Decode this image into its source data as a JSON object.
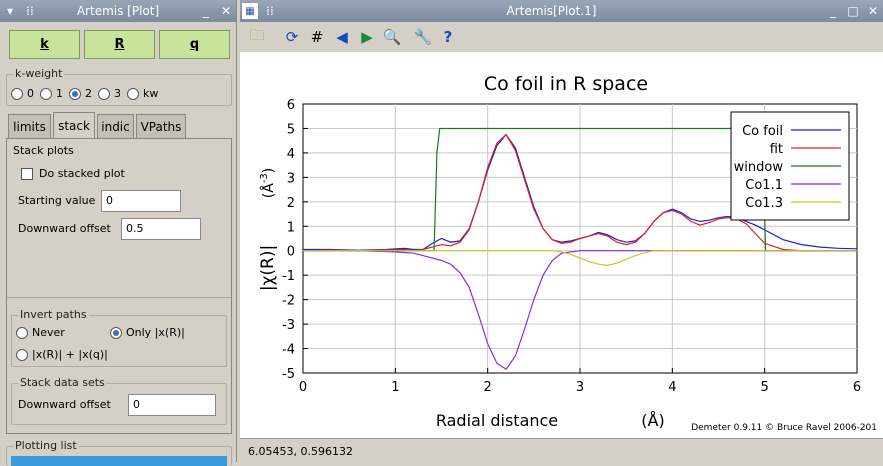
{
  "left_window": {
    "title": "Artemis [Plot]",
    "k_buttons": [
      {
        "label": "k"
      },
      {
        "label": "R"
      },
      {
        "label": "q"
      }
    ],
    "kweight": {
      "label": "k-weight",
      "options": [
        "0",
        "1",
        "2",
        "3",
        "kw"
      ],
      "selected": "2"
    },
    "tabs": [
      "limits",
      "stack",
      "indic",
      "VPaths"
    ],
    "active_tab": "stack",
    "stack_plots": {
      "label": "Stack plots",
      "do_stacked": "Do stacked plot",
      "starting_label": "Starting value",
      "starting_value": "0",
      "downward_label": "Downward offset",
      "downward_value": "0.5"
    },
    "invert_paths": {
      "label": "Invert paths",
      "never": "Never",
      "only": "Only |x(R)|",
      "both": "|x(R)| + |x(q)|"
    },
    "stack_data_sets": {
      "label": "Stack data sets",
      "downward_label": "Downward offset",
      "downward_value": "0"
    },
    "plotting_list": {
      "label": "Plotting list"
    }
  },
  "right_window": {
    "title": "Artemis[Plot.1]",
    "status": "6.05453,  0.596132"
  },
  "chart_data": {
    "type": "line",
    "title": "Co foil in R space",
    "xlabel": "Radial distance",
    "xunit": "(Å)",
    "ylabel": "|χ(R)|",
    "yunit_base": "(Å",
    "yunit_exp": "-3",
    "yunit_close": ")",
    "xlim": [
      0,
      6
    ],
    "ylim": [
      -5,
      6
    ],
    "xticks": [
      "0",
      "1",
      "2",
      "3",
      "4",
      "5",
      "6"
    ],
    "yticks": [
      "-5",
      "-4",
      "-3",
      "-2",
      "-1",
      "0",
      "1",
      "2",
      "3",
      "4",
      "5",
      "6"
    ],
    "credit": "Demeter 0.9.11 © Bruce Ravel 2006-201",
    "legend_position": "top-right",
    "colors": {
      "Co foil": "#1f1fd8",
      "fit": "#e02020",
      "window": "#1a7a1a",
      "Co1.1": "#8a2be2",
      "Co1.3": "#c8c820"
    },
    "series": [
      {
        "name": "Co foil",
        "x": [
          0,
          0.3,
          0.6,
          0.9,
          1.1,
          1.2,
          1.3,
          1.4,
          1.5,
          1.6,
          1.7,
          1.8,
          1.9,
          2.0,
          2.1,
          2.2,
          2.3,
          2.4,
          2.5,
          2.6,
          2.7,
          2.8,
          2.9,
          3.0,
          3.1,
          3.2,
          3.3,
          3.4,
          3.5,
          3.6,
          3.7,
          3.8,
          3.9,
          4.0,
          4.1,
          4.2,
          4.3,
          4.4,
          4.5,
          4.6,
          4.7,
          4.8,
          4.9,
          5.0,
          5.2,
          5.4,
          5.6,
          5.8,
          6.0
        ],
        "y": [
          0.05,
          0.05,
          0.02,
          0.05,
          0.1,
          0.05,
          0.05,
          0.3,
          0.5,
          0.35,
          0.4,
          0.9,
          2.0,
          3.3,
          4.3,
          4.75,
          4.2,
          3.0,
          1.8,
          0.9,
          0.45,
          0.35,
          0.4,
          0.5,
          0.6,
          0.75,
          0.65,
          0.45,
          0.35,
          0.4,
          0.7,
          1.2,
          1.55,
          1.7,
          1.55,
          1.3,
          1.2,
          1.25,
          1.35,
          1.4,
          1.35,
          1.2,
          1.05,
          0.85,
          0.45,
          0.25,
          0.15,
          0.1,
          0.08
        ]
      },
      {
        "name": "fit",
        "x": [
          0,
          0.3,
          0.6,
          0.9,
          1.1,
          1.2,
          1.3,
          1.4,
          1.5,
          1.6,
          1.7,
          1.8,
          1.9,
          2.0,
          2.1,
          2.2,
          2.3,
          2.4,
          2.5,
          2.6,
          2.7,
          2.8,
          2.9,
          3.0,
          3.1,
          3.2,
          3.3,
          3.4,
          3.5,
          3.6,
          3.7,
          3.8,
          3.9,
          4.0,
          4.1,
          4.2,
          4.3,
          4.4,
          4.5,
          4.6,
          4.7,
          4.8,
          4.9,
          5.0,
          5.2,
          5.4,
          5.6,
          5.8,
          6.0
        ],
        "y": [
          0.0,
          0.02,
          0.0,
          0.03,
          0.05,
          0.0,
          0.05,
          0.15,
          0.25,
          0.2,
          0.35,
          0.85,
          2.0,
          3.4,
          4.4,
          4.75,
          4.1,
          2.9,
          1.7,
          0.9,
          0.45,
          0.3,
          0.35,
          0.5,
          0.6,
          0.7,
          0.6,
          0.35,
          0.25,
          0.35,
          0.7,
          1.2,
          1.55,
          1.65,
          1.5,
          1.2,
          1.05,
          1.15,
          1.3,
          1.35,
          1.3,
          1.1,
          0.7,
          0.3,
          0.05,
          0.0,
          0.0,
          0.0,
          0.0
        ]
      },
      {
        "name": "window",
        "x": [
          0,
          1.42,
          1.45,
          1.48,
          4.95,
          4.98,
          5.01,
          6.0
        ],
        "y": [
          0,
          0,
          4.0,
          5,
          5,
          4.0,
          0,
          0
        ]
      },
      {
        "name": "Co1.1",
        "x": [
          0,
          0.6,
          1.0,
          1.2,
          1.3,
          1.4,
          1.5,
          1.6,
          1.7,
          1.8,
          1.9,
          2.0,
          2.1,
          2.2,
          2.3,
          2.4,
          2.5,
          2.6,
          2.7,
          2.8,
          3.0,
          3.5,
          4.0,
          5.0,
          6.0
        ],
        "y": [
          0,
          0,
          -0.05,
          -0.1,
          -0.2,
          -0.3,
          -0.4,
          -0.55,
          -0.9,
          -1.5,
          -2.6,
          -3.8,
          -4.6,
          -4.85,
          -4.3,
          -3.2,
          -2.0,
          -1.0,
          -0.4,
          -0.1,
          0,
          0,
          0,
          0,
          0
        ]
      },
      {
        "name": "Co1.3",
        "x": [
          0,
          2.5,
          2.7,
          2.8,
          2.9,
          3.0,
          3.1,
          3.2,
          3.3,
          3.4,
          3.5,
          3.6,
          3.7,
          3.8,
          4.0,
          5.0,
          6.0
        ],
        "y": [
          0,
          0,
          0,
          -0.05,
          -0.15,
          -0.3,
          -0.45,
          -0.55,
          -0.6,
          -0.5,
          -0.35,
          -0.2,
          -0.08,
          0,
          0,
          0,
          0
        ]
      }
    ]
  }
}
